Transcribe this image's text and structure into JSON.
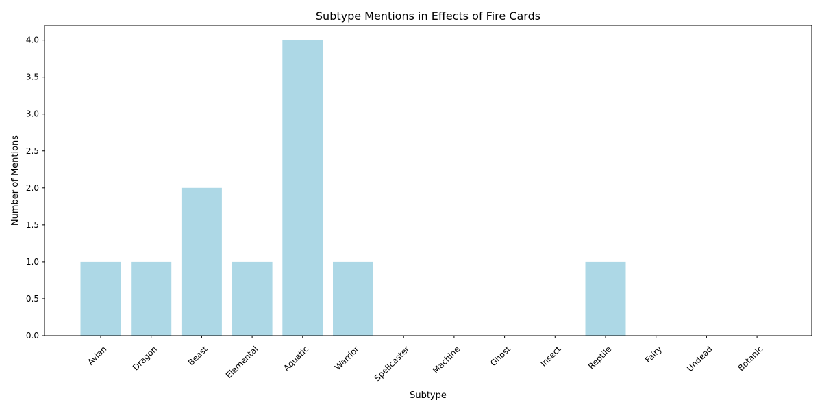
{
  "chart_data": {
    "type": "bar",
    "title": "Subtype Mentions in Effects of Fire Cards",
    "xlabel": "Subtype",
    "ylabel": "Number of Mentions",
    "categories": [
      "Avian",
      "Dragon",
      "Beast",
      "Elemental",
      "Aquatic",
      "Warrior",
      "Spellcaster",
      "Machine",
      "Ghost",
      "Insect",
      "Reptile",
      "Fairy",
      "Undead",
      "Botanic"
    ],
    "values": [
      1,
      1,
      2,
      1,
      4,
      1,
      0,
      0,
      0,
      0,
      1,
      0,
      0,
      0
    ],
    "ylim": [
      0,
      4.2
    ],
    "yticks": [
      "0.0",
      "0.5",
      "1.0",
      "1.5",
      "2.0",
      "2.5",
      "3.0",
      "3.5",
      "4.0"
    ],
    "bar_color": "#add8e6",
    "grid": false,
    "legend": "none"
  }
}
